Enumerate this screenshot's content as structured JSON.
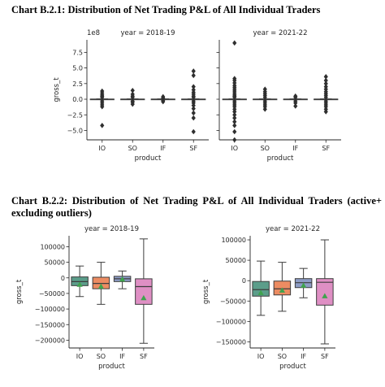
{
  "headings": {
    "chart1": "Chart B.2.1: Distribution of Net Trading P&L of All Individual Traders",
    "chart2": "Chart B.2.2: Distribution of Net Trading P&L of All Individual Traders (active+ excluding outliers)"
  },
  "colors": {
    "IO": "#5b9d8a",
    "SO": "#ec8c62",
    "IF": "#8d9cc5",
    "SF": "#df8fc4",
    "mean_marker": "#3fa34d",
    "outlier": "#2f2f2f"
  },
  "chart_data": [
    {
      "type": "box",
      "title": "Chart B.2.1: Distribution of Net Trading P&L of All Individual Traders",
      "scale_label": "1e8",
      "ylabel": "gross_t",
      "xlabel": "product",
      "ylim": [
        -6.5,
        9.5
      ],
      "yticks": [
        "7.5",
        "5.0",
        "2.5",
        "0.0",
        "−2.5",
        "−5.0"
      ],
      "ytick_values": [
        7.5,
        5.0,
        2.5,
        0.0,
        -2.5,
        -5.0
      ],
      "categories": [
        "IO",
        "SO",
        "IF",
        "SF"
      ],
      "panels": [
        {
          "title": "year = 2018-19",
          "boxes": [
            {
              "name": "IO",
              "q1": -0.02,
              "median": 0,
              "q3": 0.02,
              "whisker_low": -0.05,
              "whisker_high": 0.05,
              "outliers": [
                1.3,
                1.0,
                0.7,
                0.5,
                0.3,
                -0.3,
                -0.6,
                -0.9,
                -1.2,
                -4.2
              ]
            },
            {
              "name": "SO",
              "q1": -0.02,
              "median": 0,
              "q3": 0.02,
              "whisker_low": -0.05,
              "whisker_high": 0.05,
              "outliers": [
                1.4,
                0.8,
                0.5,
                0.3,
                -0.3,
                -0.5,
                -0.8
              ]
            },
            {
              "name": "IF",
              "q1": -0.02,
              "median": 0,
              "q3": 0.02,
              "whisker_low": -0.05,
              "whisker_high": 0.05,
              "outliers": [
                0.4,
                0.2,
                -0.2,
                -0.4
              ]
            },
            {
              "name": "SF",
              "q1": -0.02,
              "median": 0,
              "q3": 0.02,
              "whisker_low": -0.05,
              "whisker_high": 0.05,
              "outliers": [
                4.5,
                3.8,
                2.0,
                1.5,
                1.1,
                0.8,
                0.5,
                0.3,
                -0.3,
                -0.6,
                -1.0,
                -1.5,
                -2.2,
                -3.0,
                -5.2
              ]
            }
          ]
        },
        {
          "title": "year = 2021-22",
          "boxes": [
            {
              "name": "IO",
              "q1": -0.02,
              "median": 0,
              "q3": 0.02,
              "whisker_low": -0.05,
              "whisker_high": 0.05,
              "outliers": [
                9.0,
                3.3,
                3.0,
                2.6,
                2.2,
                1.9,
                1.6,
                1.3,
                1.0,
                0.7,
                0.5,
                0.3,
                -0.3,
                -0.6,
                -0.9,
                -1.2,
                -1.6,
                -2.0,
                -2.5,
                -3.0,
                -3.6,
                -4.2,
                -5.2,
                -6.5
              ]
            },
            {
              "name": "SO",
              "q1": -0.02,
              "median": 0,
              "q3": 0.02,
              "whisker_low": -0.05,
              "whisker_high": 0.05,
              "outliers": [
                1.6,
                1.2,
                0.9,
                0.6,
                0.3,
                -0.3,
                -0.6,
                -0.9,
                -1.2,
                -1.6
              ]
            },
            {
              "name": "IF",
              "q1": -0.02,
              "median": 0,
              "q3": 0.02,
              "whisker_low": -0.05,
              "whisker_high": 0.05,
              "outliers": [
                0.5,
                0.3,
                -0.3,
                -0.6,
                -1.1
              ]
            },
            {
              "name": "SF",
              "q1": -0.02,
              "median": 0,
              "q3": 0.02,
              "whisker_low": -0.05,
              "whisker_high": 0.05,
              "outliers": [
                3.6,
                3.0,
                2.5,
                2.0,
                1.6,
                1.2,
                0.9,
                0.6,
                0.3,
                -0.3,
                -0.6,
                -0.9,
                -1.2,
                -1.6,
                -2.0
              ]
            }
          ]
        }
      ]
    },
    {
      "type": "box",
      "title": "Chart B.2.2: Distribution of Net Trading P&L of All Individual Traders (active+ excluding outliers)",
      "ylabel": "gross_t",
      "xlabel": "product",
      "categories": [
        "IO",
        "SO",
        "IF",
        "SF"
      ],
      "panels": [
        {
          "title": "year = 2018-19",
          "ylim": [
            -225000,
            135000
          ],
          "yticks": [
            "100000",
            "50000",
            "0",
            "−50000",
            "−100000",
            "−150000",
            "−200000"
          ],
          "ytick_values": [
            100000,
            50000,
            0,
            -50000,
            -100000,
            -150000,
            -200000
          ],
          "boxes": [
            {
              "name": "IO",
              "q1": -25000,
              "median": -12000,
              "q3": 3000,
              "whisker_low": -60000,
              "whisker_high": 38000,
              "mean": -22000
            },
            {
              "name": "SO",
              "q1": -35000,
              "median": -18000,
              "q3": 2000,
              "whisker_low": -85000,
              "whisker_high": 50000,
              "mean": -28000
            },
            {
              "name": "IF",
              "q1": -12000,
              "median": -3000,
              "q3": 5000,
              "whisker_low": -35000,
              "whisker_high": 22000,
              "mean": -5000
            },
            {
              "name": "SF",
              "q1": -85000,
              "median": -28000,
              "q3": -3000,
              "whisker_low": -210000,
              "whisker_high": 125000,
              "mean": -65000
            }
          ]
        },
        {
          "title": "year = 2021-22",
          "ylim": [
            -165000,
            110000
          ],
          "yticks": [
            "100000",
            "50000",
            "0",
            "−50000",
            "−100000",
            "−150000"
          ],
          "ytick_values": [
            100000,
            50000,
            0,
            -50000,
            -100000,
            -150000
          ],
          "boxes": [
            {
              "name": "IO",
              "q1": -38000,
              "median": -22000,
              "q3": -2000,
              "whisker_low": -85000,
              "whisker_high": 48000,
              "mean": -30000
            },
            {
              "name": "SO",
              "q1": -35000,
              "median": -20000,
              "q3": -1000,
              "whisker_low": -75000,
              "whisker_high": 45000,
              "mean": -24000
            },
            {
              "name": "IF",
              "q1": -17000,
              "median": -5000,
              "q3": 5000,
              "whisker_low": -42000,
              "whisker_high": 30000,
              "mean": -12000
            },
            {
              "name": "SF",
              "q1": -60000,
              "median": -4000,
              "q3": 5000,
              "whisker_low": -155000,
              "whisker_high": 100000,
              "mean": -38000
            }
          ]
        }
      ]
    }
  ]
}
